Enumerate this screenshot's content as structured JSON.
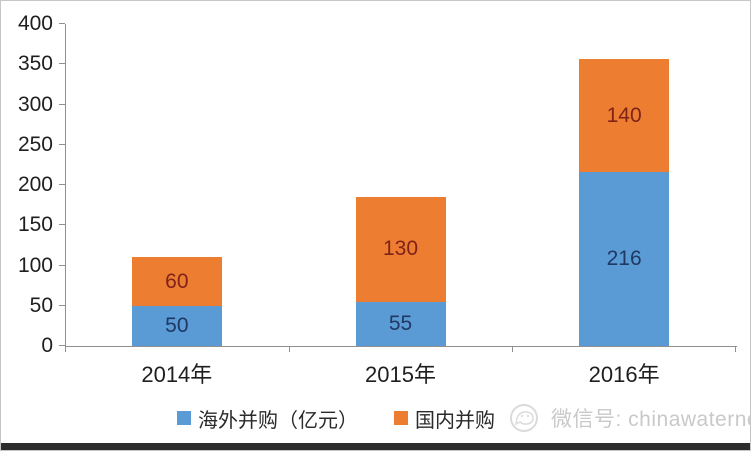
{
  "chart_data": {
    "type": "bar",
    "stacked": true,
    "title": "",
    "xlabel": "",
    "ylabel": "",
    "grid": false,
    "legend_position": "bottom",
    "categories": [
      "2014年",
      "2015年",
      "2016年"
    ],
    "series": [
      {
        "name": "海外并购（亿元）",
        "color": "#5B9BD5",
        "label_color": "#1F3864",
        "values": [
          50,
          55,
          216
        ]
      },
      {
        "name": "国内并购",
        "color": "#ED7D31",
        "label_color": "#7F2318",
        "values": [
          60,
          130,
          140
        ]
      }
    ],
    "ylim": [
      0,
      400
    ],
    "yticks": [
      0,
      50,
      100,
      150,
      200,
      250,
      300,
      350,
      400
    ]
  },
  "watermark": {
    "icon": "wechat-logo-icon",
    "text": "微信号: chinawaternet"
  },
  "colors": {
    "axis_line": "#8f8f8f",
    "tick_label": "#1f1f1f",
    "watermark_text": "#c9c9c9",
    "bottom_bar": "#2d2d2d",
    "background": "#ffffff"
  }
}
